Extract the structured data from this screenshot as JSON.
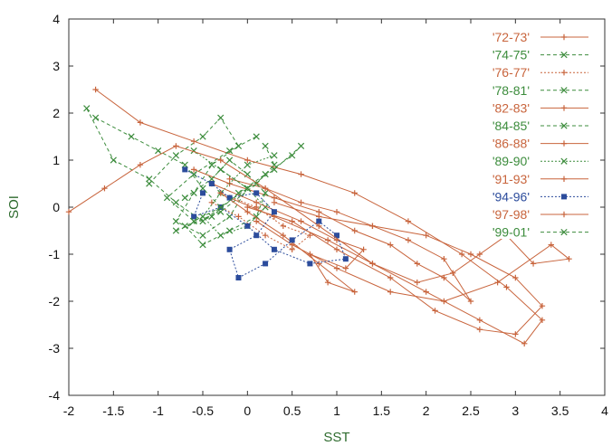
{
  "chart_data": {
    "type": "line",
    "title": "",
    "xlabel": "SST",
    "ylabel": "SOI",
    "xlim": [
      -2,
      4
    ],
    "ylim": [
      -4,
      4
    ],
    "x_ticks": [
      "-2",
      "-1.5",
      "-1",
      "-0.5",
      "0",
      "0.5",
      "1",
      "1.5",
      "2",
      "2.5",
      "3",
      "3.5",
      "4"
    ],
    "y_ticks": [
      "-4",
      "-3",
      "-2",
      "-1",
      "0",
      "1",
      "2",
      "3",
      "4"
    ],
    "grid": false,
    "legend_position": "top-right",
    "series": [
      {
        "name": "'72-73'",
        "color": "#c8643c",
        "dash": "solid",
        "marker": "plus",
        "points": [
          [
            -0.6,
            0.8
          ],
          [
            -0.2,
            0.5
          ],
          [
            0.3,
            0.2
          ],
          [
            0.8,
            -0.1
          ],
          [
            1.2,
            -0.5
          ],
          [
            1.6,
            -0.8
          ],
          [
            1.9,
            -1.2
          ],
          [
            2.2,
            -1.5
          ],
          [
            2.5,
            -2.0
          ],
          [
            2.2,
            -1.1
          ],
          [
            1.8,
            -0.7
          ],
          [
            1.4,
            -0.4
          ],
          [
            1.0,
            -0.1
          ],
          [
            0.6,
            0.1
          ],
          [
            0.2,
            0.4
          ],
          [
            -0.2,
            0.6
          ]
        ]
      },
      {
        "name": "'74-75'",
        "color": "#3c8c3c",
        "dash": "dashed",
        "marker": "cross",
        "points": [
          [
            -1.1,
            0.5
          ],
          [
            -0.8,
            1.1
          ],
          [
            -0.5,
            1.5
          ],
          [
            -0.3,
            1.9
          ],
          [
            -0.1,
            1.3
          ],
          [
            -0.4,
            0.9
          ],
          [
            -0.6,
            0.3
          ],
          [
            -0.8,
            -0.3
          ],
          [
            -0.5,
            -0.6
          ],
          [
            -0.2,
            -0.2
          ],
          [
            0.0,
            0.4
          ],
          [
            -0.3,
            0.8
          ]
        ]
      },
      {
        "name": "'76-77'",
        "color": "#c8643c",
        "dash": "dotted",
        "marker": "plus",
        "points": [
          [
            -0.3,
            0.3
          ],
          [
            0.1,
            0.0
          ],
          [
            0.4,
            -0.4
          ],
          [
            0.7,
            -0.6
          ],
          [
            0.5,
            -0.9
          ],
          [
            0.2,
            -0.6
          ],
          [
            -0.1,
            -0.2
          ],
          [
            -0.4,
            0.1
          ]
        ]
      },
      {
        "name": "'78-81'",
        "color": "#3c8c3c",
        "dash": "dashed",
        "marker": "cross",
        "points": [
          [
            -0.7,
            0.2
          ],
          [
            -0.4,
            0.6
          ],
          [
            -0.2,
            1.0
          ],
          [
            0.0,
            0.7
          ],
          [
            0.2,
            0.3
          ],
          [
            0.1,
            -0.2
          ],
          [
            -0.2,
            -0.5
          ],
          [
            -0.5,
            -0.8
          ],
          [
            -0.7,
            -0.4
          ],
          [
            -0.3,
            -0.1
          ],
          [
            0.1,
            0.5
          ],
          [
            0.3,
            0.9
          ],
          [
            0.2,
            1.3
          ]
        ]
      },
      {
        "name": "'82-83'",
        "color": "#c8643c",
        "dash": "solid",
        "marker": "plus",
        "points": [
          [
            0.0,
            0.0
          ],
          [
            0.5,
            -0.3
          ],
          [
            1.0,
            -0.9
          ],
          [
            1.6,
            -1.5
          ],
          [
            2.1,
            -2.2
          ],
          [
            2.6,
            -2.6
          ],
          [
            3.0,
            -2.7
          ],
          [
            3.3,
            -2.1
          ],
          [
            3.0,
            -1.5
          ],
          [
            2.5,
            -1.0
          ],
          [
            2.0,
            -0.6
          ],
          [
            1.4,
            -0.4
          ],
          [
            0.8,
            -0.2
          ],
          [
            0.3,
            0.1
          ]
        ]
      },
      {
        "name": "'84-85'",
        "color": "#3c8c3c",
        "dash": "dashed",
        "marker": "cross",
        "points": [
          [
            -1.7,
            1.9
          ],
          [
            -1.3,
            1.5
          ],
          [
            -1.0,
            1.2
          ],
          [
            -0.7,
            0.9
          ],
          [
            -0.5,
            0.4
          ],
          [
            -0.3,
            0.0
          ],
          [
            -0.5,
            -0.3
          ],
          [
            -0.8,
            0.1
          ],
          [
            -1.1,
            0.6
          ],
          [
            -1.5,
            1.0
          ],
          [
            -1.8,
            2.1
          ]
        ]
      },
      {
        "name": "'86-88'",
        "color": "#c8643c",
        "dash": "solid",
        "marker": "plus",
        "points": [
          [
            -0.2,
            0.2
          ],
          [
            0.3,
            -0.2
          ],
          [
            0.9,
            -0.7
          ],
          [
            1.4,
            -1.2
          ],
          [
            1.9,
            -1.6
          ],
          [
            2.3,
            -1.4
          ],
          [
            2.6,
            -1.0
          ],
          [
            2.9,
            -0.6
          ],
          [
            3.2,
            -1.2
          ],
          [
            3.6,
            -1.1
          ],
          [
            3.4,
            -0.8
          ],
          [
            2.8,
            -1.6
          ],
          [
            2.2,
            -2.0
          ],
          [
            1.6,
            -1.8
          ],
          [
            1.0,
            -1.3
          ],
          [
            0.5,
            -0.8
          ],
          [
            0.1,
            -0.3
          ]
        ]
      },
      {
        "name": "'89-90'",
        "color": "#3c8c3c",
        "dash": "dotted",
        "marker": "cross",
        "points": [
          [
            -0.6,
            1.2
          ],
          [
            -0.3,
            0.8
          ],
          [
            0.0,
            0.4
          ],
          [
            0.2,
            0.0
          ],
          [
            0.0,
            -0.4
          ],
          [
            -0.3,
            -0.6
          ],
          [
            -0.5,
            -0.2
          ],
          [
            -0.3,
            0.3
          ],
          [
            0.0,
            0.9
          ],
          [
            0.3,
            1.1
          ]
        ]
      },
      {
        "name": "'91-93'",
        "color": "#c8643c",
        "dash": "solid",
        "marker": "plus",
        "points": [
          [
            -0.4,
            0.5
          ],
          [
            0.1,
            0.1
          ],
          [
            0.6,
            -0.3
          ],
          [
            1.0,
            -0.7
          ],
          [
            1.3,
            -0.9
          ],
          [
            1.1,
            -1.3
          ],
          [
            0.7,
            -1.0
          ],
          [
            0.9,
            -1.6
          ],
          [
            1.2,
            -1.8
          ],
          [
            0.8,
            -1.2
          ],
          [
            0.4,
            -0.6
          ],
          [
            0.0,
            -0.1
          ],
          [
            -0.3,
            0.3
          ]
        ]
      },
      {
        "name": "'94-96'",
        "color": "#2c4c9c",
        "dash": "dotted",
        "marker": "square",
        "points": [
          [
            -0.7,
            0.8
          ],
          [
            -0.4,
            0.5
          ],
          [
            -0.2,
            0.2
          ],
          [
            0.1,
            0.3
          ],
          [
            0.3,
            -0.1
          ],
          [
            0.1,
            -0.6
          ],
          [
            -0.2,
            -0.9
          ],
          [
            -0.1,
            -1.5
          ],
          [
            0.2,
            -1.2
          ],
          [
            0.5,
            -0.7
          ],
          [
            0.8,
            -0.3
          ],
          [
            1.0,
            -0.6
          ],
          [
            1.1,
            -1.1
          ],
          [
            0.7,
            -1.2
          ],
          [
            0.3,
            -0.9
          ],
          [
            0.0,
            -0.4
          ],
          [
            -0.3,
            0.0
          ],
          [
            -0.6,
            -0.2
          ],
          [
            -0.5,
            0.3
          ]
        ]
      },
      {
        "name": "'97-98'",
        "color": "#c8643c",
        "dash": "solid",
        "marker": "plus",
        "points": [
          [
            -2.0,
            -0.1
          ],
          [
            -1.6,
            0.4
          ],
          [
            -1.2,
            0.9
          ],
          [
            -0.8,
            1.3
          ],
          [
            -0.3,
            1.0
          ],
          [
            0.2,
            0.4
          ],
          [
            0.8,
            -0.4
          ],
          [
            1.4,
            -1.2
          ],
          [
            2.0,
            -1.8
          ],
          [
            2.6,
            -2.4
          ],
          [
            3.1,
            -2.9
          ],
          [
            3.3,
            -2.4
          ],
          [
            2.9,
            -1.7
          ],
          [
            2.4,
            -1.0
          ],
          [
            1.8,
            -0.3
          ],
          [
            1.2,
            0.3
          ],
          [
            0.6,
            0.7
          ],
          [
            0.0,
            1.0
          ],
          [
            -0.6,
            1.4
          ],
          [
            -1.2,
            1.8
          ],
          [
            -1.7,
            2.5
          ]
        ]
      },
      {
        "name": "'99-01'",
        "color": "#3c8c3c",
        "dash": "dashed",
        "marker": "cross",
        "points": [
          [
            -0.8,
            -0.5
          ],
          [
            -0.4,
            -0.2
          ],
          [
            -0.1,
            0.3
          ],
          [
            0.2,
            0.7
          ],
          [
            0.5,
            1.1
          ],
          [
            0.6,
            1.3
          ],
          [
            0.3,
            0.8
          ],
          [
            0.0,
            0.4
          ],
          [
            -0.3,
            0.0
          ],
          [
            -0.6,
            -0.3
          ],
          [
            -0.9,
            0.2
          ],
          [
            -0.6,
            0.7
          ],
          [
            -0.2,
            1.2
          ],
          [
            0.1,
            1.5
          ]
        ]
      }
    ]
  }
}
